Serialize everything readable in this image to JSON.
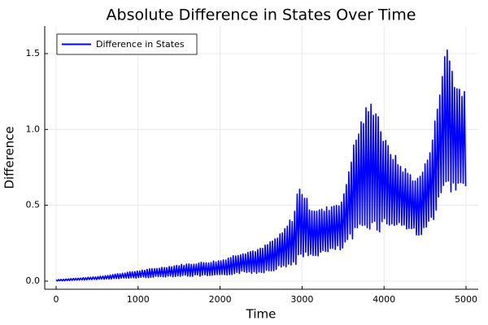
{
  "chart_data": {
    "type": "line",
    "title": "Absolute Difference in States Over Time",
    "xlabel": "Time",
    "ylabel": "Difference",
    "xlim": [
      -150,
      5150
    ],
    "ylim": [
      -0.04,
      1.68
    ],
    "xticks": [
      0,
      1000,
      2000,
      3000,
      4000,
      5000
    ],
    "xtick_labels": [
      "0",
      "1000",
      "2000",
      "3000",
      "4000",
      "5000"
    ],
    "yticks": [
      0,
      0.5,
      1.0,
      1.5
    ],
    "ytick_labels": [
      "0.0",
      "0.5",
      "1.0",
      "1.5"
    ],
    "grid": true,
    "legend_position": "top-left",
    "series": [
      {
        "name": "Difference in States",
        "color": "#0000ff",
        "oscillation_period": 30,
        "envelope": {
          "time": [
            0,
            500,
            1000,
            1500,
            2000,
            2250,
            2500,
            2750,
            2900,
            2950,
            3000,
            3100,
            3250,
            3500,
            3600,
            3700,
            3800,
            3900,
            4000,
            4200,
            4400,
            4500,
            4600,
            4700,
            4750,
            4800,
            4900,
            5000
          ],
          "upper": [
            0.01,
            0.03,
            0.07,
            0.11,
            0.14,
            0.19,
            0.22,
            0.32,
            0.45,
            0.63,
            0.62,
            0.5,
            0.48,
            0.55,
            0.85,
            1.05,
            1.18,
            1.2,
            0.95,
            0.78,
            0.68,
            0.78,
            1.0,
            1.35,
            1.63,
            1.5,
            1.3,
            1.3
          ],
          "lower": [
            0.0,
            0.01,
            0.02,
            0.03,
            0.03,
            0.05,
            0.05,
            0.08,
            0.1,
            0.12,
            0.13,
            0.15,
            0.17,
            0.2,
            0.25,
            0.3,
            0.35,
            0.3,
            0.35,
            0.35,
            0.3,
            0.3,
            0.4,
            0.5,
            0.6,
            0.55,
            0.55,
            0.6
          ]
        }
      }
    ]
  }
}
